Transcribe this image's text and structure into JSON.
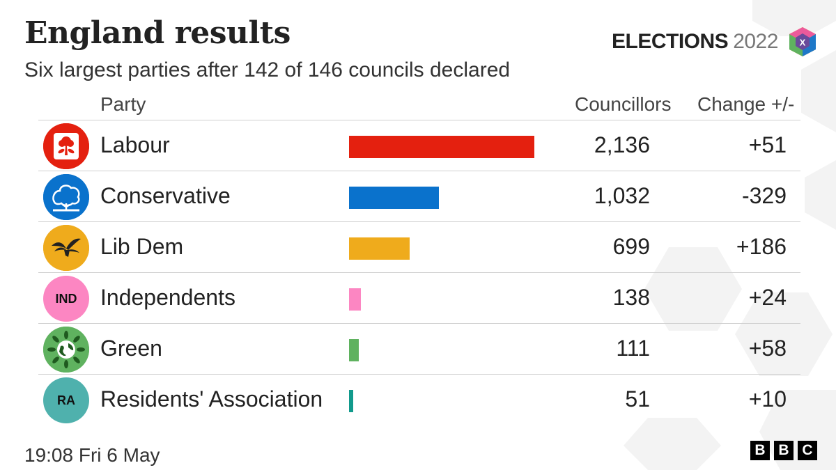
{
  "header": {
    "title": "England results",
    "subtitle": "Six largest parties after 142 of 146 councils declared",
    "brand_word": "ELECTIONS",
    "brand_year": "2022",
    "brand_logo_letter": "X",
    "brand_logo_icon": "elections-cube-icon"
  },
  "columns": {
    "party": "Party",
    "councillors": "Councillors",
    "change": "Change +/-"
  },
  "chart_data": {
    "type": "bar",
    "title": "England results",
    "subtitle": "Six largest parties after 142 of 146 councils declared",
    "categories": [
      "Labour",
      "Conservative",
      "Lib Dem",
      "Independents",
      "Green",
      "Residents' Association"
    ],
    "values": [
      2136,
      1032,
      699,
      138,
      111,
      51
    ],
    "changes": [
      "+51",
      "-329",
      "+186",
      "+24",
      "+58",
      "+10"
    ],
    "xlabel": "Councillors",
    "ylabel": "Party",
    "orientation": "horizontal",
    "grid": false,
    "legend": "none"
  },
  "rows": [
    {
      "party": "Labour",
      "councillors": "2,136",
      "change": "+51",
      "color": "#e4200f",
      "logo_icon": "rose-icon",
      "logo_bg": "#e4200f",
      "logo_text": ""
    },
    {
      "party": "Conservative",
      "councillors": "1,032",
      "change": "-329",
      "color": "#0a72cc",
      "logo_icon": "tree-icon",
      "logo_bg": "#0a72cc",
      "logo_text": ""
    },
    {
      "party": "Lib Dem",
      "councillors": "699",
      "change": "+186",
      "color": "#efab1c",
      "logo_icon": "bird-icon",
      "logo_bg": "#efab1c",
      "logo_text": ""
    },
    {
      "party": "Independents",
      "councillors": "138",
      "change": "+24",
      "color": "#fc86c2",
      "logo_icon": "",
      "logo_bg": "#fc86c2",
      "logo_text": "IND"
    },
    {
      "party": "Green",
      "councillors": "111",
      "change": "+58",
      "color": "#5fb25f",
      "logo_icon": "globe-leaves-icon",
      "logo_bg": "#5fb25f",
      "logo_text": ""
    },
    {
      "party": "Residents' Association",
      "councillors": "51",
      "change": "+10",
      "color": "#119a8c",
      "logo_icon": "",
      "logo_bg": "#4fb1ad",
      "logo_text": "RA"
    }
  ],
  "footer": {
    "timestamp": "19:08 Fri  6 May",
    "bbc_letters": [
      "B",
      "B",
      "C"
    ]
  }
}
